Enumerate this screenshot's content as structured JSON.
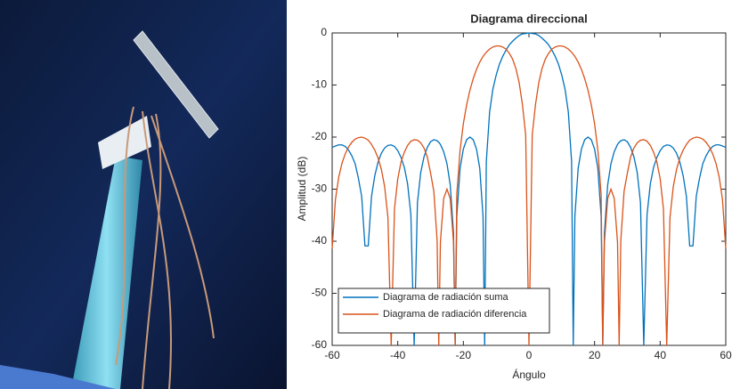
{
  "chart_data": {
    "type": "line",
    "title": "Diagrama direccional",
    "xlabel": "Ángulo",
    "ylabel": "Amplitud (dB)",
    "x": [
      -60,
      -59,
      -58,
      -57,
      -56,
      -55,
      -54,
      -53,
      -52,
      -51,
      -50,
      -49,
      -48,
      -47,
      -46,
      -45,
      -44,
      -43,
      -42,
      -41,
      -40,
      -39,
      -38,
      -37,
      -36,
      -35,
      -34,
      -33,
      -32,
      -31,
      -30,
      -29,
      -28,
      -27.5,
      -27,
      -26,
      -25,
      -24,
      -23,
      -22.5,
      -22,
      -21,
      -20,
      -19,
      -18,
      -17,
      -16,
      -15,
      -14,
      -13.5,
      -13,
      -12,
      -11,
      -10,
      -9,
      -8,
      -7,
      -6,
      -5,
      -4,
      -3,
      -2,
      -1,
      0,
      1,
      2,
      3,
      4,
      5,
      6,
      7,
      8,
      9,
      10,
      11,
      12,
      13,
      13.5,
      14,
      15,
      16,
      17,
      18,
      19,
      20,
      21,
      22,
      22.5,
      23,
      24,
      25,
      26,
      27,
      27.5,
      28,
      29,
      30,
      31,
      32,
      33,
      34,
      35,
      36,
      37,
      38,
      39,
      40,
      41,
      42,
      43,
      44,
      45,
      46,
      47,
      48,
      49,
      50,
      51,
      52,
      53,
      54,
      55,
      56,
      57,
      58,
      59,
      60
    ],
    "series": [
      {
        "name": "Diagrama de radiación suma",
        "color": "#0072BD",
        "values": [
          -22,
          -21.7,
          -21.5,
          -21.5,
          -21.8,
          -22.5,
          -23.6,
          -25.1,
          -27.9,
          -31.4,
          -40.9,
          -40.9,
          -31.4,
          -27.4,
          -24.8,
          -23.1,
          -22.1,
          -21.6,
          -21.5,
          -21.8,
          -22.6,
          -23.9,
          -25.8,
          -29,
          -34.9,
          -60,
          -32.6,
          -26.8,
          -23.8,
          -22,
          -20.9,
          -20.5,
          -20.7,
          -21,
          -21.4,
          -22.8,
          -25.1,
          -29.2,
          -38.5,
          -60,
          -35.2,
          -26,
          -22.3,
          -20.5,
          -20,
          -20.5,
          -22.3,
          -26,
          -35.2,
          -60,
          -24.7,
          -15.2,
          -10.8,
          -8.1,
          -6,
          -4.5,
          -3.3,
          -2.3,
          -1.6,
          -1,
          -0.5,
          -0.2,
          -0.1,
          0,
          -0.1,
          -0.2,
          -0.5,
          -1,
          -1.6,
          -2.3,
          -3.3,
          -4.5,
          -6,
          -8.1,
          -10.8,
          -15.2,
          -24.7,
          -60,
          -35.2,
          -26,
          -22.3,
          -20.5,
          -20,
          -20.5,
          -22.3,
          -26,
          -35.2,
          -60,
          -38.5,
          -29.2,
          -25.1,
          -22.8,
          -21.4,
          -21,
          -20.7,
          -20.5,
          -20.9,
          -22,
          -23.8,
          -26.8,
          -32.6,
          -60,
          -34.9,
          -29,
          -25.8,
          -23.9,
          -22.6,
          -21.8,
          -21.5,
          -21.6,
          -22.1,
          -23.1,
          -24.8,
          -27.4,
          -31.4,
          -40.9,
          -40.9,
          -31.4,
          -27.9,
          -25.1,
          -23.6,
          -22.5,
          -21.8,
          -21.5,
          -21.5,
          -21.7,
          -22
        ]
      },
      {
        "name": "Diagrama de radiación diferencia",
        "color": "#D95319",
        "values": [
          -41.4,
          -32,
          -27.7,
          -25,
          -23.2,
          -21.9,
          -21,
          -20.4,
          -20.1,
          -20,
          -20.2,
          -20.6,
          -21.4,
          -22.5,
          -24,
          -26.2,
          -29.5,
          -35.4,
          -60,
          -33.8,
          -28,
          -24.8,
          -22.9,
          -21.6,
          -20.8,
          -20.5,
          -20.6,
          -21.1,
          -22.1,
          -23.8,
          -26.9,
          -30.4,
          -39.9,
          -60,
          -40.2,
          -31.8,
          -30,
          -31.8,
          -40.2,
          -60,
          -31,
          -22.5,
          -17.4,
          -13.8,
          -11,
          -8.8,
          -7,
          -5.6,
          -4.5,
          -4.1,
          -3.7,
          -3.1,
          -2.7,
          -2.5,
          -2.5,
          -2.7,
          -3.1,
          -3.9,
          -5,
          -6.8,
          -9.5,
          -13.7,
          -19.6,
          -60,
          -19.6,
          -13.7,
          -9.5,
          -6.8,
          -5,
          -3.9,
          -3.1,
          -2.7,
          -2.5,
          -2.5,
          -2.7,
          -3.1,
          -3.7,
          -4.1,
          -4.5,
          -5.6,
          -7,
          -8.8,
          -11,
          -13.8,
          -17.4,
          -22.5,
          -31,
          -60,
          -40.2,
          -31.8,
          -30,
          -31.8,
          -40.2,
          -60,
          -39.9,
          -30.4,
          -26.9,
          -23.8,
          -22.1,
          -21.1,
          -20.6,
          -20.5,
          -20.8,
          -21.6,
          -22.9,
          -24.8,
          -28,
          -33.8,
          -60,
          -35.4,
          -29.5,
          -26.2,
          -24,
          -22.5,
          -21.4,
          -20.6,
          -20.2,
          -20,
          -20.1,
          -20.4,
          -21,
          -21.9,
          -23.2,
          -25,
          -27.7,
          -32,
          -41.4
        ]
      }
    ],
    "xlim": [
      -60,
      60
    ],
    "xticks": [
      -60,
      -40,
      -20,
      0,
      20,
      40,
      60
    ],
    "ylim": [
      -60,
      0
    ],
    "yticks": [
      0,
      -10,
      -20,
      -30,
      -40,
      -50,
      -60
    ],
    "grid": false,
    "legend": "lower left"
  }
}
